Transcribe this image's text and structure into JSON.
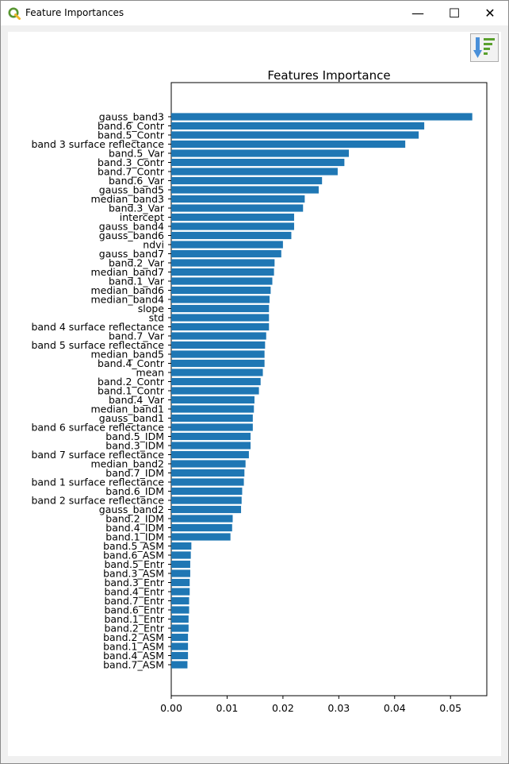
{
  "window": {
    "title": "Feature Importances",
    "controls": {
      "minimize": "—",
      "maximize": "☐",
      "close": "✕"
    }
  },
  "toolbar": {
    "save_icon": "save-figure-icon"
  },
  "colors": {
    "bar": "#1f77b4",
    "titlebar": "#ffffff",
    "client": "#ffffff"
  },
  "chart_data": {
    "type": "bar",
    "orientation": "horizontal",
    "title": "Features Importance",
    "xlabel": "",
    "ylabel": "",
    "xlim": [
      0,
      0.0565
    ],
    "xticks": [
      "0.00",
      "0.01",
      "0.02",
      "0.03",
      "0.04",
      "0.05"
    ],
    "grid": false,
    "categories": [
      "gauss_band3",
      "band.6_Contr",
      "band.5_Contr",
      "band 3 surface reflectance",
      "band.5_Var",
      "band.3_Contr",
      "band.7_Contr",
      "band.6_Var",
      "gauss_band5",
      "median_band3",
      "band.3_Var",
      "intercept",
      "gauss_band4",
      "gauss_band6",
      "ndvi",
      "gauss_band7",
      "band.2_Var",
      "median_band7",
      "band.1_Var",
      "median_band6",
      "median_band4",
      "slope",
      "std",
      "band 4 surface reflectance",
      "band.7_Var",
      "band 5 surface reflectance",
      "median_band5",
      "band.4_Contr",
      "mean",
      "band.2_Contr",
      "band.1_Contr",
      "band.4_Var",
      "median_band1",
      "gauss_band1",
      "band 6 surface reflectance",
      "band.5_IDM",
      "band.3_IDM",
      "band 7 surface reflectance",
      "median_band2",
      "band.7_IDM",
      "band 1 surface reflectance",
      "band.6_IDM",
      "band 2 surface reflectance",
      "gauss_band2",
      "band.2_IDM",
      "band.4_IDM",
      "band.1_IDM",
      "band.5_ASM",
      "band.6_ASM",
      "band.5_Entr",
      "band.3_ASM",
      "band.3_Entr",
      "band.4_Entr",
      "band.7_Entr",
      "band.6_Entr",
      "band.1_Entr",
      "band.2_Entr",
      "band.2_ASM",
      "band.1_ASM",
      "band.4_ASM",
      "band.7_ASM"
    ],
    "values": [
      0.0539,
      0.0453,
      0.0443,
      0.0419,
      0.0318,
      0.031,
      0.0298,
      0.027,
      0.0264,
      0.0239,
      0.0236,
      0.022,
      0.022,
      0.0215,
      0.02,
      0.0197,
      0.0185,
      0.0184,
      0.0181,
      0.0178,
      0.0176,
      0.0175,
      0.0175,
      0.0175,
      0.017,
      0.0168,
      0.0167,
      0.0167,
      0.0164,
      0.016,
      0.0157,
      0.0149,
      0.0148,
      0.0146,
      0.0146,
      0.0142,
      0.0142,
      0.0139,
      0.0133,
      0.0131,
      0.013,
      0.0127,
      0.0126,
      0.0125,
      0.011,
      0.0109,
      0.0106,
      0.0036,
      0.0035,
      0.0034,
      0.0034,
      0.0033,
      0.0033,
      0.0032,
      0.0032,
      0.0031,
      0.0031,
      0.003,
      0.003,
      0.003,
      0.0029
    ]
  }
}
